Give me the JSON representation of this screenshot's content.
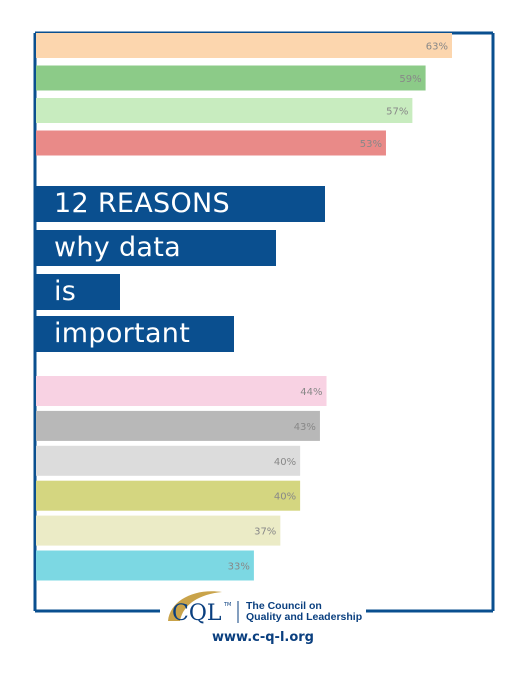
{
  "chart_data": {
    "type": "bar",
    "orientation": "horizontal",
    "axis_max": 63,
    "groups": [
      {
        "bars": [
          {
            "value": 63,
            "label": "63%",
            "color": "#fcd6ae"
          },
          {
            "value": 59,
            "label": "59%",
            "color": "#8ccb88"
          },
          {
            "value": 57,
            "label": "57%",
            "color": "#c8ecbf"
          },
          {
            "value": 53,
            "label": "53%",
            "color": "#e98a88"
          }
        ]
      },
      {
        "bars": [
          {
            "value": 44,
            "label": "44%",
            "color": "#f8d2e3"
          },
          {
            "value": 43,
            "label": "43%",
            "color": "#b8b8b8"
          },
          {
            "value": 40,
            "label": "40%",
            "color": "#dcdcdc"
          },
          {
            "value": 40,
            "label": "40%",
            "color": "#d4d680"
          },
          {
            "value": 37,
            "label": "37%",
            "color": "#ebebc6"
          },
          {
            "value": 33,
            "label": "33%",
            "color": "#7cd8e3"
          }
        ]
      }
    ]
  },
  "title": {
    "lines": [
      "12 REASONS",
      "why  data",
      "is",
      "important"
    ],
    "background": "#0a4f8f"
  },
  "footer": {
    "logo_mark": "CQL",
    "logo_tm": "TM",
    "org_line1": "The Council on",
    "org_line2": "Quality and Leadership",
    "url": "www.c-q-l.org",
    "brand_color": "#0a3f7f",
    "accent_color": "#c9a34a"
  },
  "frame_color": "#0a4f8f"
}
